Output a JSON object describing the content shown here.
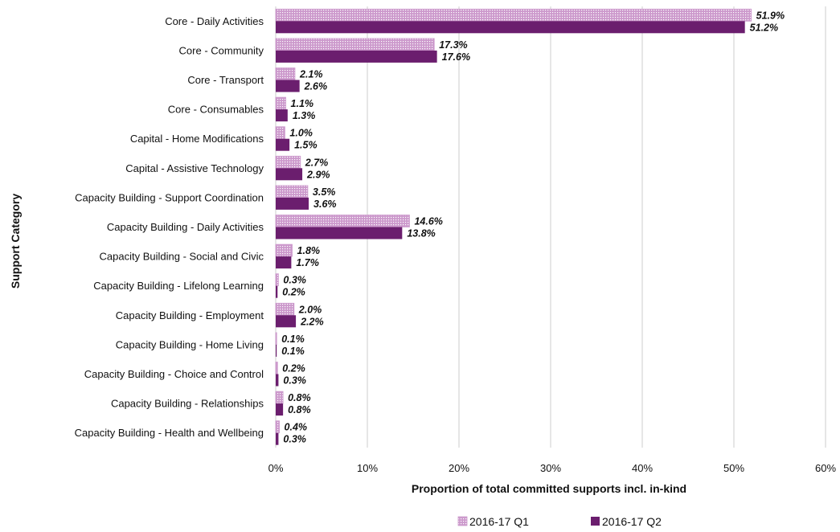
{
  "colors": {
    "q1_fill": "#cc99cc",
    "q1_dot": "#ffffff",
    "q2_fill": "#6b1e6e",
    "grid": "#d9d9d9"
  },
  "chart_data": {
    "type": "bar",
    "orientation": "horizontal",
    "title": "",
    "xlabel": "Proportion of total committed supports incl. in-kind",
    "ylabel": "Support Category",
    "xlim": [
      0,
      60
    ],
    "xticks": [
      "0%",
      "10%",
      "20%",
      "30%",
      "40%",
      "50%",
      "60%"
    ],
    "grid": "vertical",
    "legend": "bottom",
    "categories": [
      "Core - Daily Activities",
      "Core - Community",
      "Core - Transport",
      "Core - Consumables",
      "Capital - Home Modifications",
      "Capital - Assistive Technology",
      "Capacity Building - Support Coordination",
      "Capacity Building - Daily Activities",
      "Capacity Building - Social and Civic",
      "Capacity Building - Lifelong Learning",
      "Capacity Building - Employment",
      "Capacity Building - Home Living",
      "Capacity Building - Choice and Control",
      "Capacity Building - Relationships",
      "Capacity Building - Health and Wellbeing"
    ],
    "series": [
      {
        "name": "2016-17 Q1",
        "pattern": "dotted",
        "values": [
          51.9,
          17.3,
          2.1,
          1.1,
          1.0,
          2.7,
          3.5,
          14.6,
          1.8,
          0.3,
          2.0,
          0.1,
          0.2,
          0.8,
          0.4
        ],
        "labels": [
          "51.9%",
          "17.3%",
          "2.1%",
          "1.1%",
          "1.0%",
          "2.7%",
          "3.5%",
          "14.6%",
          "1.8%",
          "0.3%",
          "2.0%",
          "0.1%",
          "0.2%",
          "0.8%",
          "0.4%"
        ]
      },
      {
        "name": "2016-17 Q2",
        "pattern": "solid",
        "values": [
          51.2,
          17.6,
          2.6,
          1.3,
          1.5,
          2.9,
          3.6,
          13.8,
          1.7,
          0.2,
          2.2,
          0.1,
          0.3,
          0.8,
          0.3
        ],
        "labels": [
          "51.2%",
          "17.6%",
          "2.6%",
          "1.3%",
          "1.5%",
          "2.9%",
          "3.6%",
          "13.8%",
          "1.7%",
          "0.2%",
          "2.2%",
          "0.1%",
          "0.3%",
          "0.8%",
          "0.3%"
        ]
      }
    ]
  }
}
